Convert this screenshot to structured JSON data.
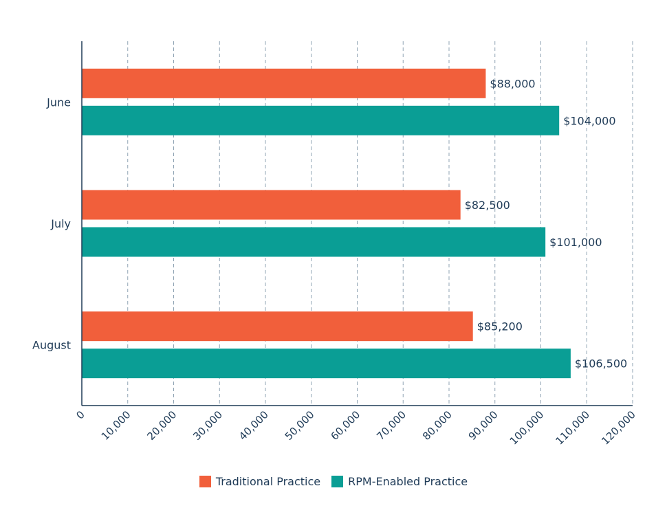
{
  "chart_data": {
    "type": "bar",
    "orientation": "horizontal",
    "categories": [
      "June",
      "July",
      "August"
    ],
    "series": [
      {
        "name": "Traditional Practice",
        "color": "#f15f3b",
        "values": [
          88000,
          82500,
          85200
        ],
        "labels": [
          "$88,000",
          "$82,500",
          "$85,200"
        ]
      },
      {
        "name": "RPM-Enabled Practice",
        "color": "#0a9e95",
        "values": [
          104000,
          101000,
          106500
        ],
        "labels": [
          "$104,000",
          "$101,000",
          "$106,500"
        ]
      }
    ],
    "xlim": [
      0,
      120000
    ],
    "x_ticks": [
      0,
      10000,
      20000,
      30000,
      40000,
      50000,
      60000,
      70000,
      80000,
      90000,
      100000,
      110000,
      120000
    ],
    "x_tick_labels": [
      "0",
      "10,000",
      "20,000",
      "30,000",
      "40,000",
      "50,000",
      "60,000",
      "70,000",
      "80,000",
      "90,000",
      "100,000",
      "110,000",
      "120,000"
    ],
    "grid": "vertical dashed",
    "legend_position": "bottom-center",
    "axis_color": "#1f3b57",
    "grid_color": "#8fa3b3"
  }
}
